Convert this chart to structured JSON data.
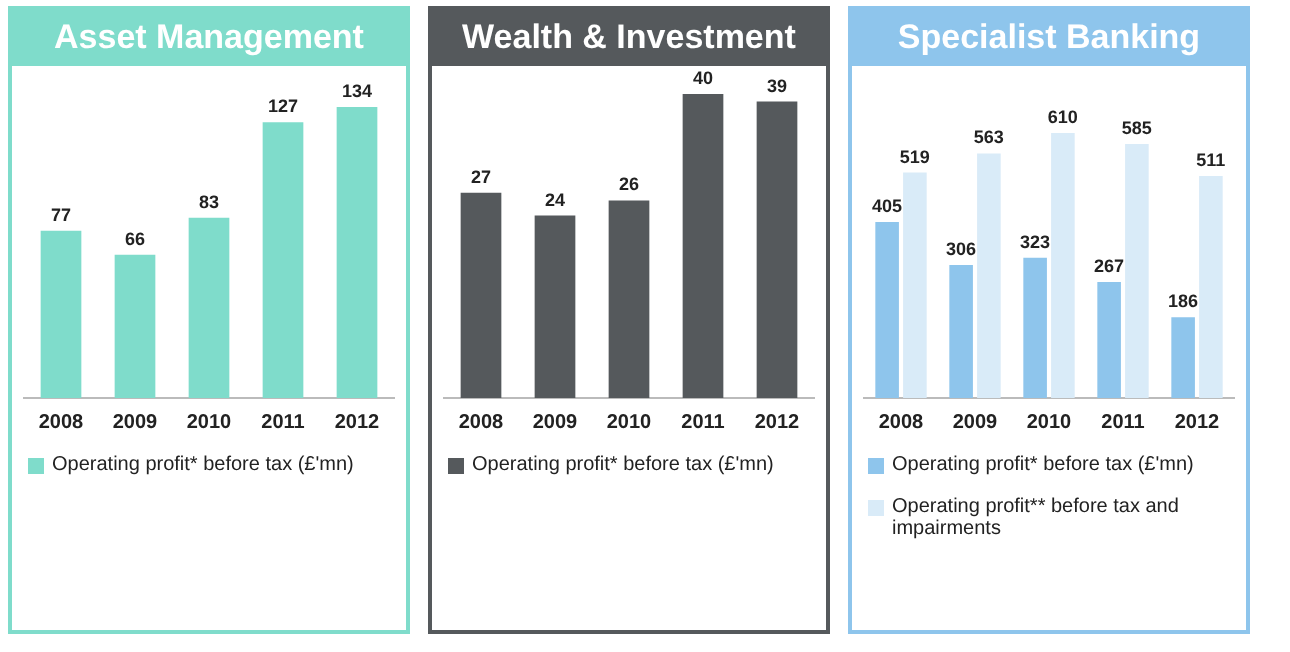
{
  "chart_data": [
    {
      "type": "bar",
      "title": "Asset Management",
      "categories": [
        "2008",
        "2009",
        "2010",
        "2011",
        "2012"
      ],
      "tick_labels": "x",
      "data_labels": true,
      "legend": "bottom",
      "series": [
        {
          "name": "Operating profit* before tax (£'mn)",
          "color": "#7fdccb",
          "values": [
            77,
            66,
            83,
            127,
            134
          ]
        }
      ]
    },
    {
      "type": "bar",
      "title": "Wealth & Investment",
      "categories": [
        "2008",
        "2009",
        "2010",
        "2011",
        "2012"
      ],
      "tick_labels": "x",
      "data_labels": true,
      "legend": "bottom",
      "series": [
        {
          "name": "Operating profit* before tax (£'mn)",
          "color": "#55595c",
          "values": [
            27,
            24,
            26,
            40,
            39
          ]
        }
      ]
    },
    {
      "type": "bar",
      "title": "Specialist Banking",
      "categories": [
        "2008",
        "2009",
        "2010",
        "2011",
        "2012"
      ],
      "tick_labels": "x",
      "data_labels": true,
      "legend": "bottom",
      "series": [
        {
          "name": "Operating profit* before tax (£'mn)",
          "color": "#8ec5ec",
          "values": [
            405,
            306,
            323,
            267,
            186
          ]
        },
        {
          "name": "Operating profit** before tax and impairments",
          "color": "#d9ebf8",
          "values": [
            519,
            563,
            610,
            585,
            511
          ]
        }
      ]
    }
  ]
}
